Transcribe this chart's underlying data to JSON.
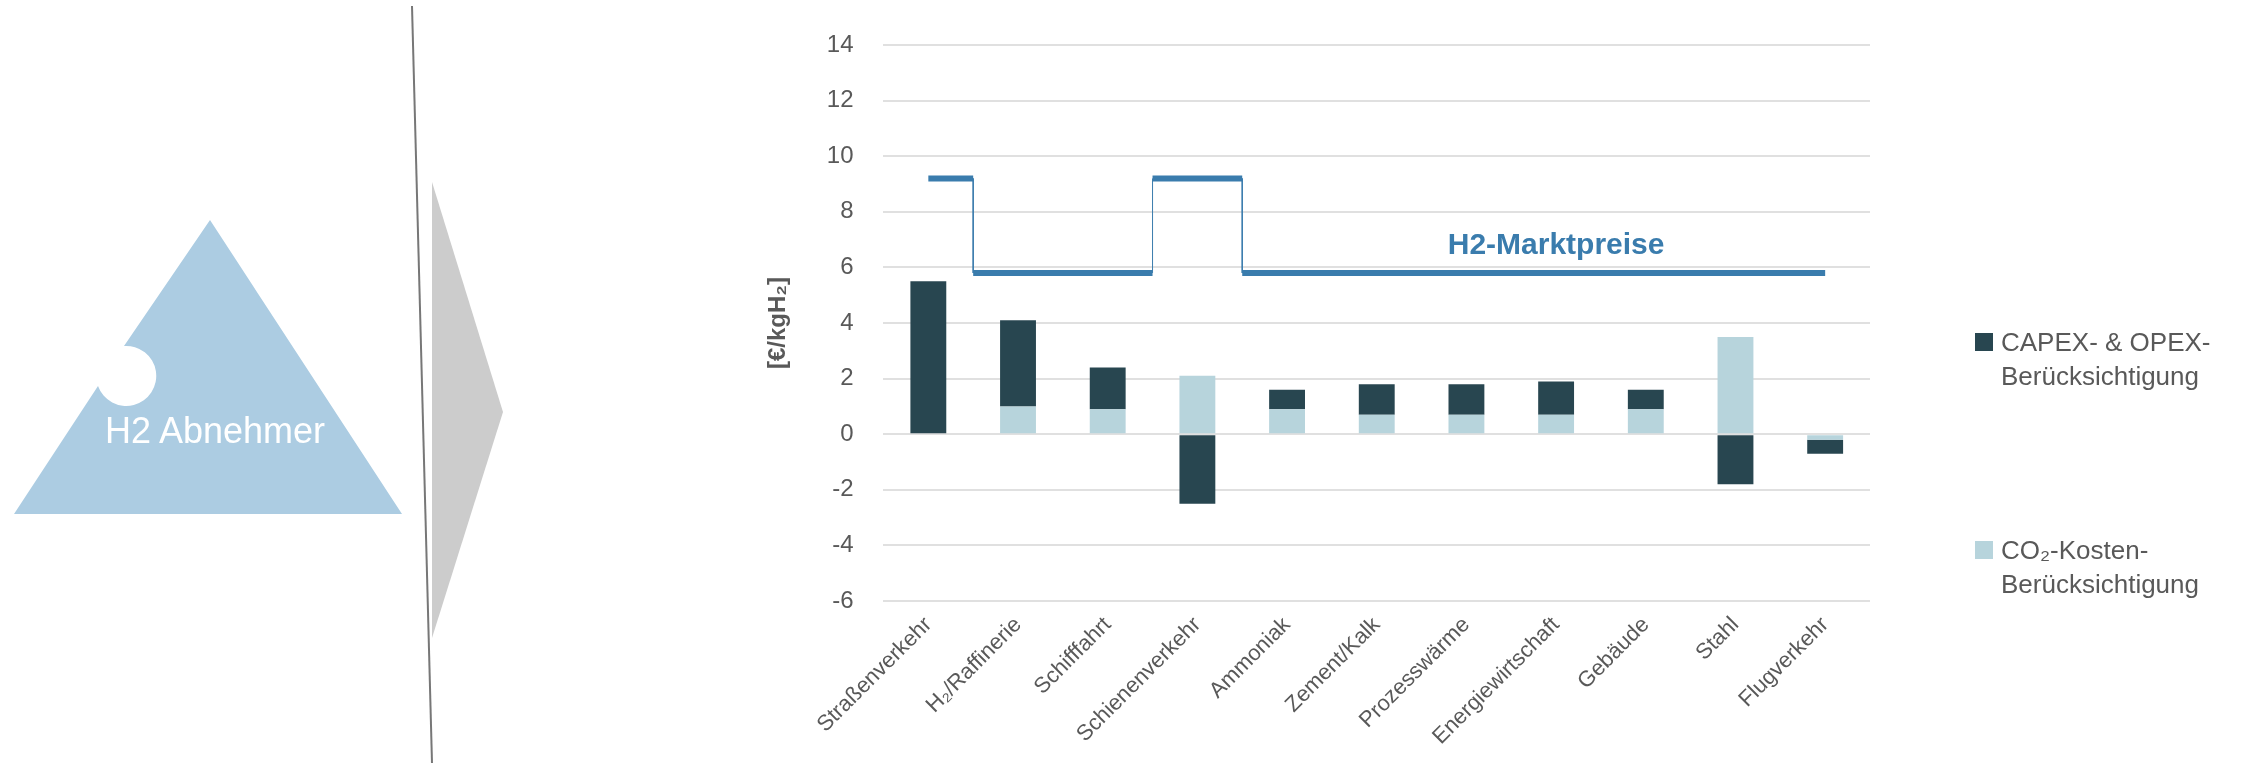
{
  "chart_data": {
    "type": "bar",
    "stacked": true,
    "ylabel": "[€/kgH₂]",
    "grid": "y",
    "legend": "right",
    "annotations": [
      "H2 Abnehmer"
    ],
    "categories": [
      "Straßenverkehr",
      "H₂/Raffinerie",
      "Schifffahrt",
      "Schienenverkehr",
      "Ammoniak",
      "Zement/Kalk",
      "Prozesswärme",
      "Energiewirtschaft",
      "Gebäude",
      "Stahl",
      "Flugverkehr"
    ],
    "ylim": [
      -6,
      14
    ],
    "yticks": [
      -6,
      -4,
      -2,
      0,
      2,
      4,
      6,
      8,
      10,
      12,
      14
    ],
    "series": [
      {
        "name": "CO₂-Kosten-Berücksichtigung",
        "color": "#b7d4dc",
        "values": [
          0,
          1.0,
          0.9,
          2.1,
          0.9,
          0.7,
          0.7,
          0.7,
          0.9,
          3.5,
          -0.2
        ]
      },
      {
        "name": "CAPEX- & OPEX-Berücksichtigung",
        "color": "#284650",
        "values": [
          5.5,
          3.1,
          1.5,
          -2.5,
          0.7,
          1.1,
          1.1,
          1.2,
          0.7,
          -1.8,
          -0.5
        ]
      },
      {
        "name": "H2-Marktpreise",
        "type": "step",
        "color": "#3a7cad",
        "values": [
          9.2,
          5.8,
          5.8,
          9.2,
          5.8,
          5.8,
          5.8,
          5.8,
          5.8,
          5.8,
          5.8
        ]
      }
    ]
  }
}
